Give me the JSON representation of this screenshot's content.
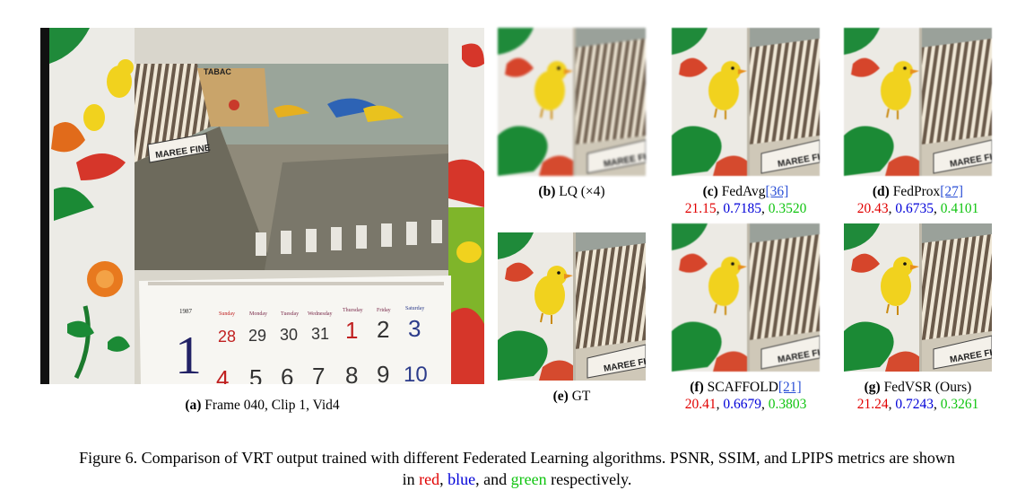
{
  "panels": {
    "a": {
      "tag": "(a)",
      "caption": "Frame 040, Clip 1, Vid4"
    },
    "b": {
      "tag": "(b)",
      "caption": "LQ (×4)"
    },
    "c": {
      "tag": "(c)",
      "method": "FedAvg",
      "ref": "[36]",
      "psnr": "21.15",
      "ssim": "0.7185",
      "lpips": "0.3520"
    },
    "d": {
      "tag": "(d)",
      "method": "FedProx",
      "ref": "[27]",
      "psnr": "20.43",
      "ssim": "0.6735",
      "lpips": "0.4101"
    },
    "e": {
      "tag": "(e)",
      "caption": "GT"
    },
    "f": {
      "tag": "(f)",
      "method": "SCAFFOLD",
      "ref": "[21]",
      "psnr": "20.41",
      "ssim": "0.6679",
      "lpips": "0.3803"
    },
    "g": {
      "tag": "(g)",
      "method": "FedVSR (Ours)",
      "ref": "",
      "psnr": "21.24",
      "ssim": "0.7243",
      "lpips": "0.3261"
    }
  },
  "scene_text": {
    "sign": "MAREE FINE",
    "shop": "TABAC",
    "year": "1987",
    "days": [
      "Sunday",
      "Monday",
      "Tuesday",
      "Wednesday",
      "Thursday",
      "Friday",
      "Saturday"
    ],
    "row1": [
      "28",
      "29",
      "30",
      "31",
      "1",
      "2",
      "3"
    ],
    "row2": [
      "4",
      "5",
      "6",
      "7",
      "8",
      "9",
      "10"
    ],
    "big_month": "1"
  },
  "figure_caption": {
    "label": "Figure 6.",
    "text": "Comparison of VRT output trained with different Federated Learning algorithms. PSNR, SSIM, and LPIPS metrics are shown",
    "in": "in",
    "red_word": "red",
    "blue_word": "blue",
    "and_word": "and",
    "green_word": "green",
    "tail": "respectively."
  },
  "colors": {
    "psnr": "#e10000",
    "ssim": "#0000d8",
    "lpips": "#10c410"
  }
}
